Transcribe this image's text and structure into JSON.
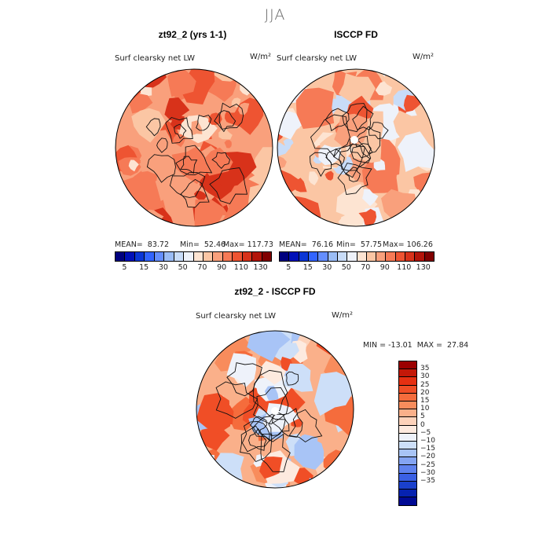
{
  "figure_title": "JJA",
  "panels": [
    {
      "title": "zt92_2 (yrs 1-1)",
      "field_label": "Surf clearsky net LW",
      "units": "W/m²",
      "stats": {
        "mean": "MEAN=  83.72",
        "min": "Min=  52.46",
        "max": "Max= 117.73"
      }
    },
    {
      "title": "ISCCP FD",
      "field_label": "Surf clearsky net LW",
      "units": "W/m²",
      "stats": {
        "mean": "MEAN=  76.16",
        "min": "Min=  57.75",
        "max": "Max= 106.26"
      }
    },
    {
      "title": "zt92_2 - ISCCP FD",
      "field_label": "Surf clearsky net LW",
      "units": "W/m²",
      "stats": {
        "minmax": "MIN = -13.01  MAX =  27.84"
      }
    }
  ],
  "colorbar_abs": {
    "colors": [
      "#00007f",
      "#0010b8",
      "#0a36d6",
      "#3264ff",
      "#648eff",
      "#9abcf5",
      "#c8dcf8",
      "#eef2fa",
      "#fde4d2",
      "#fbc6a4",
      "#f9a07c",
      "#f67a56",
      "#ee5432",
      "#d8321a",
      "#b31409",
      "#800000"
    ],
    "tick_labels": [
      "5",
      "15",
      "30",
      "50",
      "70",
      "90",
      "110",
      "130"
    ]
  },
  "colorbar_diff": {
    "colors": [
      "#9b0000",
      "#c41808",
      "#e63012",
      "#f04e26",
      "#f56c3c",
      "#f88c5c",
      "#fab08a",
      "#fdd2ba",
      "#fdeadf",
      "#eef2fa",
      "#cddff8",
      "#a8c4f6",
      "#84a4f2",
      "#5f82ee",
      "#3a60e4",
      "#1a40cc",
      "#0622b0",
      "#000a94"
    ],
    "tick_labels": [
      "35",
      "30",
      "25",
      "20",
      "15",
      "10",
      "5",
      "0",
      "−5",
      "−10",
      "−15",
      "−20",
      "−25",
      "−30",
      "−35"
    ]
  }
}
